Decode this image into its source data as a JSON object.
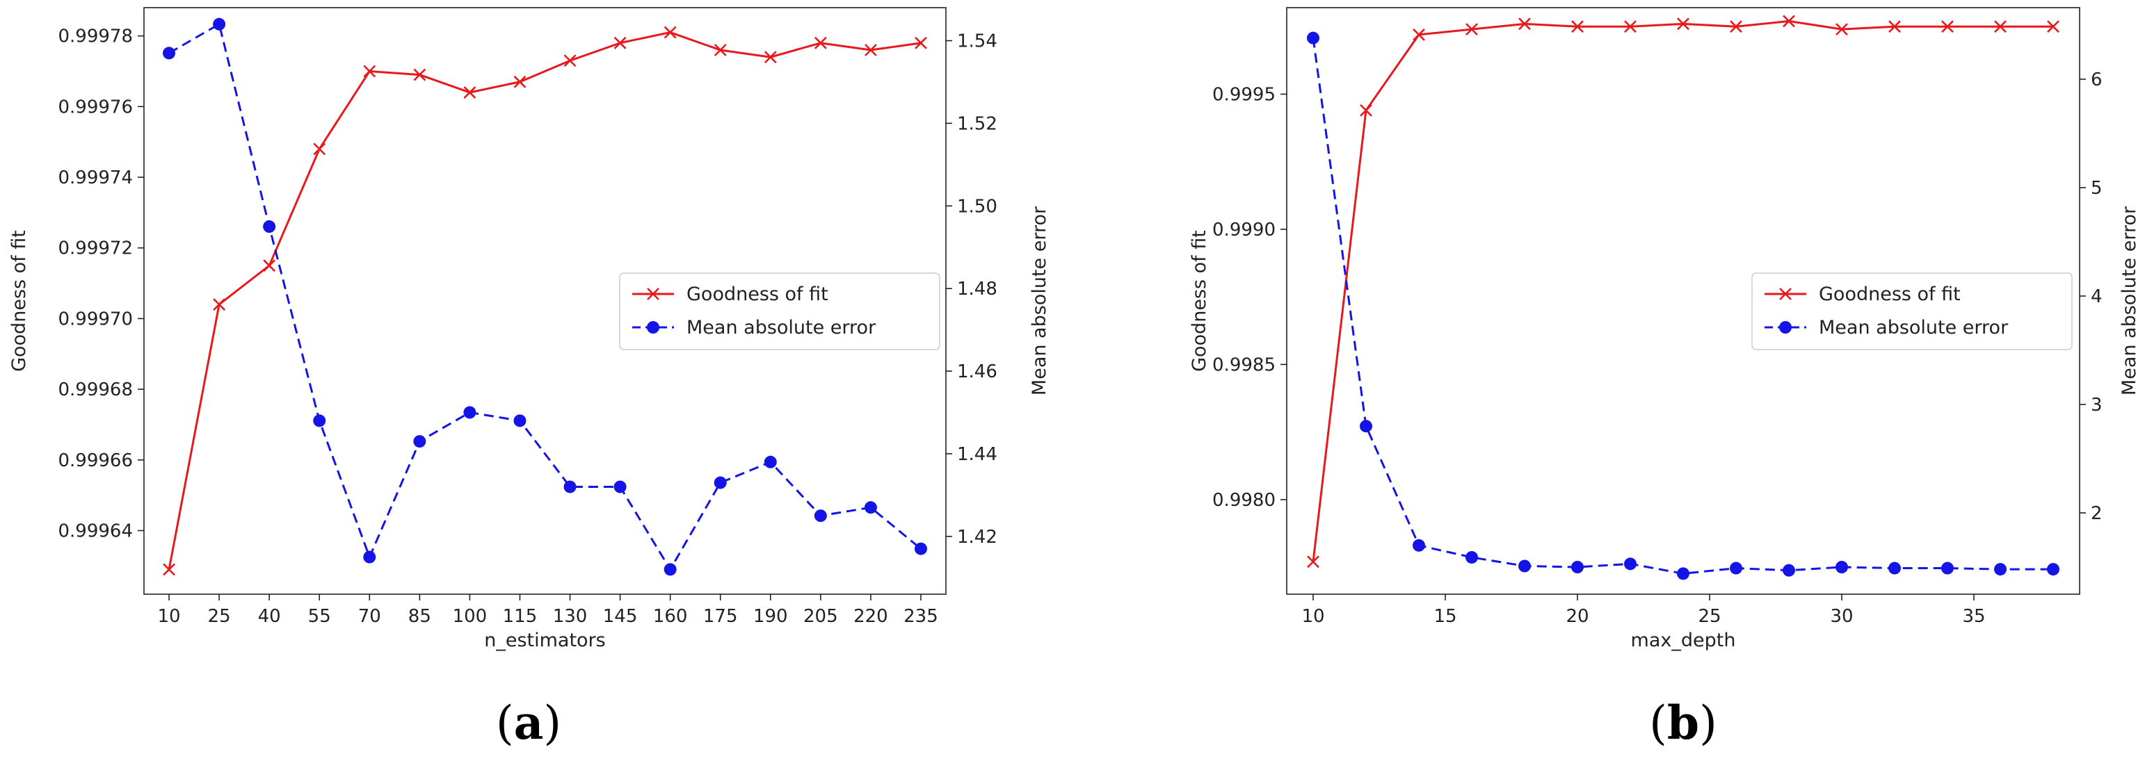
{
  "colors": {
    "gof": "#e8191c",
    "mae": "#1414e6",
    "axis": "#222222",
    "legend_border": "#cccccc"
  },
  "chart_data": [
    {
      "type": "line",
      "panel_label": {
        "open": "(",
        "letter": "a",
        "close": ")"
      },
      "xlabel": "n_estimators",
      "ylabel_left": "Goodness of fit",
      "ylabel_right": "Mean absolute error",
      "x_ticks": [
        "10",
        "25",
        "40",
        "55",
        "70",
        "85",
        "100",
        "115",
        "130",
        "145",
        "160",
        "175",
        "190",
        "205",
        "220",
        "235"
      ],
      "y_left_ticks": [
        "0.99964",
        "0.99966",
        "0.99968",
        "0.99970",
        "0.99972",
        "0.99974",
        "0.99976",
        "0.99978"
      ],
      "y_left_tick_values": [
        0.99964,
        0.99966,
        0.99968,
        0.9997,
        0.99972,
        0.99974,
        0.99976,
        0.99978
      ],
      "y_left_range": [
        0.999622,
        0.999788
      ],
      "y_right_ticks": [
        "1.42",
        "1.44",
        "1.46",
        "1.48",
        "1.50",
        "1.52",
        "1.54"
      ],
      "y_right_tick_values": [
        1.42,
        1.44,
        1.46,
        1.48,
        1.5,
        1.52,
        1.54
      ],
      "y_right_range": [
        1.406,
        1.548
      ],
      "series": [
        {
          "name": "Goodness of fit",
          "axis": "left",
          "style": "solid-x",
          "values": [
            0.999629,
            0.999704,
            0.999715,
            0.999748,
            0.99977,
            0.999769,
            0.999764,
            0.999767,
            0.999773,
            0.999778,
            0.999781,
            0.999776,
            0.999774,
            0.999778,
            0.999776,
            0.999778
          ]
        },
        {
          "name": "Mean absolute error",
          "axis": "right",
          "style": "dashed-dot",
          "values": [
            1.537,
            1.544,
            1.495,
            1.448,
            1.415,
            1.443,
            1.45,
            1.448,
            1.432,
            1.432,
            1.412,
            1.433,
            1.438,
            1.425,
            1.427,
            1.417
          ]
        }
      ],
      "legend_position": "center-right"
    },
    {
      "type": "line",
      "panel_label": {
        "open": "(",
        "letter": "b",
        "close": ")"
      },
      "xlabel": "max_depth",
      "ylabel_left": "Goodness of fit",
      "ylabel_right": "Mean absolute error",
      "x_range": [
        9,
        39
      ],
      "x_ticks": [
        "10",
        "15",
        "20",
        "25",
        "30",
        "35"
      ],
      "x_tick_values": [
        10,
        15,
        20,
        25,
        30,
        35
      ],
      "y_left_ticks": [
        "0.9980",
        "0.9985",
        "0.9990",
        "0.9995"
      ],
      "y_left_tick_values": [
        0.998,
        0.9985,
        0.999,
        0.9995
      ],
      "y_left_range": [
        0.99765,
        0.99982
      ],
      "y_right_ticks": [
        "2",
        "3",
        "4",
        "5",
        "6"
      ],
      "y_right_tick_values": [
        2,
        3,
        4,
        5,
        6
      ],
      "y_right_range": [
        1.25,
        6.66
      ],
      "series": [
        {
          "name": "Goodness of fit",
          "axis": "left",
          "style": "solid-x",
          "x": [
            10,
            12,
            14,
            16,
            18,
            20,
            22,
            24,
            26,
            28,
            30,
            32,
            34,
            36,
            38
          ],
          "values": [
            0.99777,
            0.99944,
            0.99972,
            0.99974,
            0.99976,
            0.99975,
            0.99975,
            0.99976,
            0.99975,
            0.99977,
            0.99974,
            0.99975,
            0.99975,
            0.99975,
            0.99975
          ]
        },
        {
          "name": "Mean absolute error",
          "axis": "right",
          "style": "dashed-dot",
          "x": [
            10,
            12,
            14,
            16,
            18,
            20,
            22,
            24,
            26,
            28,
            30,
            32,
            34,
            36,
            38
          ],
          "values": [
            6.38,
            2.8,
            1.7,
            1.59,
            1.51,
            1.5,
            1.53,
            1.44,
            1.49,
            1.47,
            1.5,
            1.49,
            1.49,
            1.48,
            1.48
          ]
        }
      ],
      "legend_position": "center-right"
    }
  ]
}
